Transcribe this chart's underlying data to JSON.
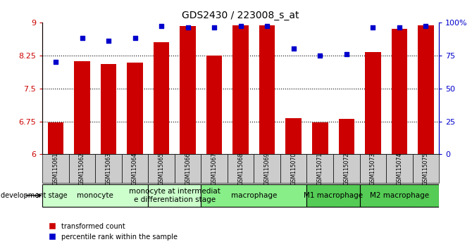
{
  "title": "GDS2430 / 223008_s_at",
  "samples": [
    "GSM115061",
    "GSM115062",
    "GSM115063",
    "GSM115064",
    "GSM115065",
    "GSM115066",
    "GSM115067",
    "GSM115068",
    "GSM115069",
    "GSM115070",
    "GSM115071",
    "GSM115072",
    "GSM115073",
    "GSM115074",
    "GSM115075"
  ],
  "bar_values": [
    6.72,
    8.12,
    8.06,
    8.09,
    8.55,
    8.92,
    8.25,
    8.93,
    8.93,
    6.82,
    6.73,
    6.8,
    8.32,
    8.85,
    8.93
  ],
  "dot_values": [
    70,
    88,
    86,
    88,
    97,
    96,
    96,
    97,
    97,
    80,
    75,
    76,
    96,
    96,
    97
  ],
  "bar_color": "#cc0000",
  "dot_color": "#0000cc",
  "ylim_left": [
    6,
    9
  ],
  "ylim_right": [
    0,
    100
  ],
  "yticks_left": [
    6,
    6.75,
    7.5,
    8.25,
    9
  ],
  "yticks_right": [
    0,
    25,
    50,
    75,
    100
  ],
  "ytick_labels_left": [
    "6",
    "6.75",
    "7.5",
    "8.25",
    "9"
  ],
  "ytick_labels_right": [
    "0",
    "25",
    "50",
    "75",
    "100%"
  ],
  "groups": [
    {
      "label": "monocyte",
      "start": 0,
      "end": 3,
      "color": "#ccffcc"
    },
    {
      "label": "monocyte at intermediat\ne differentiation stage",
      "start": 4,
      "end": 5,
      "color": "#ccffcc"
    },
    {
      "label": "macrophage",
      "start": 6,
      "end": 9,
      "color": "#88ee88"
    },
    {
      "label": "M1 macrophage",
      "start": 10,
      "end": 11,
      "color": "#55cc55"
    },
    {
      "label": "M2 macrophage",
      "start": 12,
      "end": 14,
      "color": "#55cc55"
    }
  ],
  "grid_values": [
    6.75,
    7.5,
    8.25
  ],
  "bar_width": 0.6,
  "dev_stage_label": "development stage",
  "legend_labels": [
    "transformed count",
    "percentile rank within the sample"
  ]
}
